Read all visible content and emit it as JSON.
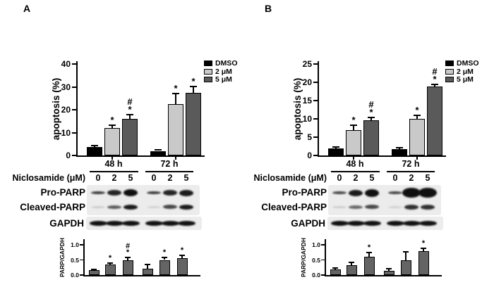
{
  "figure_title": "Niclosamide-induced apoptosis and PARP cleavage figure",
  "colors": {
    "background": "#ffffff",
    "axis": "#000000",
    "text": "#000000",
    "dmso_bar": "#000000",
    "two_uM_bar": "#c9c9c9",
    "five_uM_bar": "#5a5a5a",
    "ratio_bar": "#646464",
    "blot_background": "#ececec",
    "blot_band": "#101010"
  },
  "panels": [
    {
      "label": "A",
      "blot": {
        "time_headers": [
          "48 h",
          "72 h"
        ],
        "dose_label": "Niclosamide (μM)",
        "lane_doses": [
          "0",
          "2",
          "5",
          "0",
          "2",
          "5"
        ],
        "protein_rows": [
          {
            "label": "Pro-PARP",
            "bands": [
              {
                "i": 0.8,
                "t": 4
              },
              {
                "i": 0.9,
                "t": 8
              },
              {
                "i": 1,
                "t": 10
              },
              {
                "i": 0.8,
                "t": 4
              },
              {
                "i": 0.9,
                "t": 8
              },
              {
                "i": 0.95,
                "t": 9
              }
            ]
          },
          {
            "label": "Cleaved-PARP",
            "bands": [
              {
                "i": 0.15,
                "t": 3
              },
              {
                "i": 0.65,
                "t": 5
              },
              {
                "i": 0.95,
                "t": 7
              },
              {
                "i": 0.12,
                "t": 3
              },
              {
                "i": 0.75,
                "t": 6
              },
              {
                "i": 0.95,
                "t": 7
              }
            ]
          },
          {
            "label": "GAPDH",
            "bands": [
              {
                "i": 1,
                "t": 7
              },
              {
                "i": 1,
                "t": 7
              },
              {
                "i": 1,
                "t": 7
              },
              {
                "i": 1,
                "t": 7
              },
              {
                "i": 1,
                "t": 7
              },
              {
                "i": 1,
                "t": 7
              }
            ]
          }
        ]
      }
    },
    {
      "label": "B",
      "blot": {
        "time_headers": [
          "48 h",
          "72 h"
        ],
        "dose_label": "Niclosamide (μM)",
        "lane_doses": [
          "0",
          "2",
          "5",
          "0",
          "2",
          "5"
        ],
        "protein_rows": [
          {
            "label": "Pro-PARP",
            "bands": [
              {
                "i": 0.75,
                "t": 4
              },
              {
                "i": 0.95,
                "t": 9
              },
              {
                "i": 1,
                "t": 11
              },
              {
                "i": 0.75,
                "t": 4
              },
              {
                "i": 1,
                "t": 14,
                "w": 26
              },
              {
                "i": 1,
                "t": 14,
                "w": 26
              }
            ]
          },
          {
            "label": "Cleaved-PARP",
            "bands": [
              {
                "i": 0.15,
                "t": 3
              },
              {
                "i": 0.6,
                "t": 5
              },
              {
                "i": 0.75,
                "t": 6
              },
              {
                "i": 0.12,
                "t": 3
              },
              {
                "i": 0.85,
                "t": 7
              },
              {
                "i": 0.85,
                "t": 7
              }
            ]
          },
          {
            "label": "GAPDH",
            "bands": [
              {
                "i": 1,
                "t": 7
              },
              {
                "i": 1,
                "t": 7
              },
              {
                "i": 1,
                "t": 7
              },
              {
                "i": 1,
                "t": 7
              },
              {
                "i": 1,
                "t": 7
              },
              {
                "i": 1,
                "t": 7
              }
            ]
          }
        ]
      }
    }
  ],
  "chart_data": [
    {
      "panel": "A",
      "role": "apoptosis",
      "type": "bar",
      "title": "",
      "xlabel": "",
      "ylabel": "apoptosis (%)",
      "ylim": [
        0,
        40
      ],
      "ymax": 40,
      "ytick_labels": [
        "0",
        "10",
        "20",
        "30",
        "40"
      ],
      "categories": [
        "48 h",
        "72 h"
      ],
      "legend_position": "upper right",
      "series": [
        {
          "name": "DMSO",
          "color": "#000000",
          "values": [
            3.8,
            2.0
          ],
          "errors": [
            0.4,
            0.4
          ],
          "annotations": [
            "",
            ""
          ]
        },
        {
          "name": "2 μM",
          "color": "#c9c9c9",
          "values": [
            12.0,
            22.5
          ],
          "errors": [
            1.3,
            4.5
          ],
          "annotations": [
            "*",
            "*"
          ]
        },
        {
          "name": "5 μM",
          "color": "#5a5a5a",
          "values": [
            16.0,
            27.3
          ],
          "errors": [
            1.8,
            3.0
          ],
          "annotations": [
            "#*",
            "*"
          ]
        }
      ]
    },
    {
      "panel": "A",
      "role": "parp_gapdh_ratio",
      "type": "bar",
      "title": "",
      "xlabel": "",
      "ylabel": "PARP/GAPDH",
      "ylim": [
        0,
        1.2
      ],
      "unit": 43,
      "ytick_labels": [
        "0.0",
        "0.5",
        "1.0"
      ],
      "categories": [
        "0",
        "2",
        "5",
        "0",
        "2",
        "5"
      ],
      "group_labels": [
        "48 h",
        "72 h"
      ],
      "x_tick_labels_visible": false,
      "values": [
        0.16,
        0.35,
        0.49,
        0.22,
        0.5,
        0.55
      ],
      "errors": [
        0.03,
        0.04,
        0.08,
        0.12,
        0.07,
        0.1
      ],
      "annotations": [
        "",
        "*",
        "#*",
        "",
        "*",
        "*"
      ]
    },
    {
      "panel": "B",
      "role": "apoptosis",
      "type": "bar",
      "title": "",
      "xlabel": "",
      "ylabel": "apoptosis (%)",
      "ylim": [
        0,
        25
      ],
      "ymax": 25,
      "ytick_labels": [
        "0",
        "5",
        "10",
        "15",
        "20",
        "25"
      ],
      "categories": [
        "48 h",
        "72 h"
      ],
      "legend_position": "upper right",
      "series": [
        {
          "name": "DMSO",
          "color": "#000000",
          "values": [
            2.0,
            1.8
          ],
          "errors": [
            0.3,
            0.3
          ],
          "annotations": [
            "",
            ""
          ]
        },
        {
          "name": "2 μM",
          "color": "#c9c9c9",
          "values": [
            7.0,
            10.0
          ],
          "errors": [
            1.2,
            0.9
          ],
          "annotations": [
            "*",
            "*"
          ]
        },
        {
          "name": "5 μM",
          "color": "#5a5a5a",
          "values": [
            9.7,
            18.8
          ],
          "errors": [
            0.6,
            0.6
          ],
          "annotations": [
            "#*",
            "#*"
          ]
        }
      ]
    },
    {
      "panel": "B",
      "role": "parp_gapdh_ratio",
      "type": "bar",
      "title": "",
      "xlabel": "",
      "ylabel": "PARP/GAPDH",
      "ylim": [
        0,
        1.2
      ],
      "unit": 43,
      "ytick_labels": [
        "0.0",
        "0.5",
        "1.0"
      ],
      "categories": [
        "0",
        "2",
        "5",
        "0",
        "2",
        "5"
      ],
      "group_labels": [
        "48 h",
        "72 h"
      ],
      "x_tick_labels_visible": false,
      "values": [
        0.18,
        0.33,
        0.6,
        0.15,
        0.49,
        0.79
      ],
      "errors": [
        0.06,
        0.1,
        0.14,
        0.05,
        0.28,
        0.09
      ],
      "annotations": [
        "",
        "",
        "*",
        "",
        "",
        "*"
      ]
    }
  ]
}
